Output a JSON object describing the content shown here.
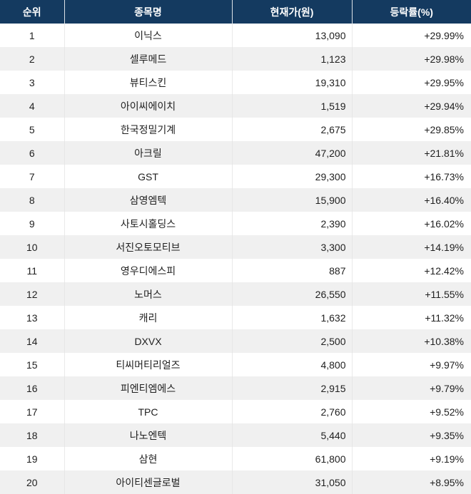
{
  "colors": {
    "header_bg": "#143a60",
    "header_text": "#ffffff",
    "row_alt_bg": "#f0f0f0",
    "body_text": "#1f1f1f"
  },
  "table": {
    "columns": [
      {
        "key": "rank",
        "label": "순위"
      },
      {
        "key": "name",
        "label": "종목명"
      },
      {
        "key": "price",
        "label": "현재가(원)"
      },
      {
        "key": "change",
        "label": "등락률(%)"
      }
    ],
    "rows": [
      {
        "rank": "1",
        "name": "이닉스",
        "price": "13,090",
        "change": "+29.99%"
      },
      {
        "rank": "2",
        "name": "셀루메드",
        "price": "1,123",
        "change": "+29.98%"
      },
      {
        "rank": "3",
        "name": "뷰티스킨",
        "price": "19,310",
        "change": "+29.95%"
      },
      {
        "rank": "4",
        "name": "아이씨에이치",
        "price": "1,519",
        "change": "+29.94%"
      },
      {
        "rank": "5",
        "name": "한국정밀기계",
        "price": "2,675",
        "change": "+29.85%"
      },
      {
        "rank": "6",
        "name": "아크릴",
        "price": "47,200",
        "change": "+21.81%"
      },
      {
        "rank": "7",
        "name": "GST",
        "price": "29,300",
        "change": "+16.73%"
      },
      {
        "rank": "8",
        "name": "삼영엠텍",
        "price": "15,900",
        "change": "+16.40%"
      },
      {
        "rank": "9",
        "name": "사토시홀딩스",
        "price": "2,390",
        "change": "+16.02%"
      },
      {
        "rank": "10",
        "name": "서진오토모티브",
        "price": "3,300",
        "change": "+14.19%"
      },
      {
        "rank": "11",
        "name": "영우디에스피",
        "price": "887",
        "change": "+12.42%"
      },
      {
        "rank": "12",
        "name": "노머스",
        "price": "26,550",
        "change": "+11.55%"
      },
      {
        "rank": "13",
        "name": "캐리",
        "price": "1,632",
        "change": "+11.32%"
      },
      {
        "rank": "14",
        "name": "DXVX",
        "price": "2,500",
        "change": "+10.38%"
      },
      {
        "rank": "15",
        "name": "티씨머티리얼즈",
        "price": "4,800",
        "change": "+9.97%"
      },
      {
        "rank": "16",
        "name": "피엔티엠에스",
        "price": "2,915",
        "change": "+9.79%"
      },
      {
        "rank": "17",
        "name": "TPC",
        "price": "2,760",
        "change": "+9.52%"
      },
      {
        "rank": "18",
        "name": "나노엔텍",
        "price": "5,440",
        "change": "+9.35%"
      },
      {
        "rank": "19",
        "name": "삼현",
        "price": "61,800",
        "change": "+9.19%"
      },
      {
        "rank": "20",
        "name": "아이티센글로벌",
        "price": "31,050",
        "change": "+8.95%"
      }
    ]
  }
}
